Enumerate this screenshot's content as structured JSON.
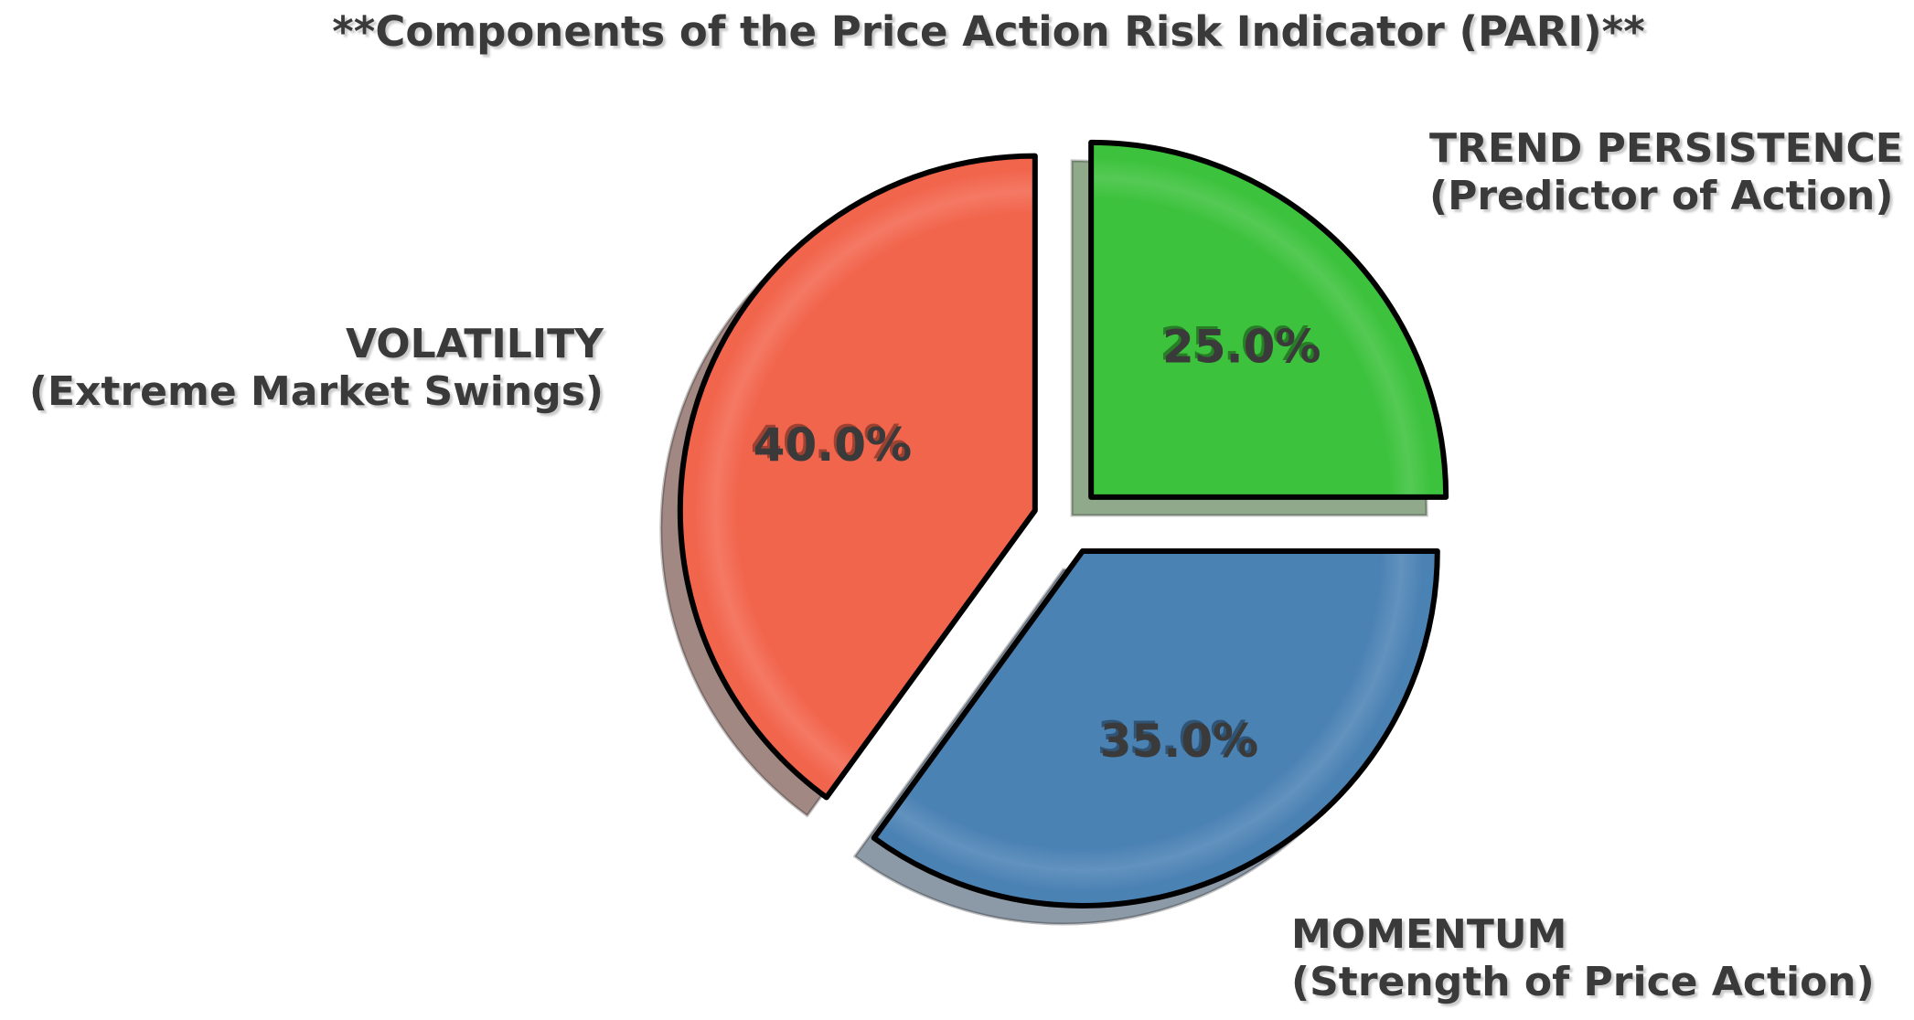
{
  "colors": {
    "background": "#FFFFFF",
    "text": "#3A3A3A",
    "edge": "#000000"
  },
  "chart_data": {
    "type": "pie",
    "title": "**Components of the Price Action Risk Indicator (PARI)**",
    "start_angle": 90,
    "direction": "counterclockwise",
    "explode": 0.095,
    "shadow": true,
    "legend_position": "none",
    "pct_distance": 0.6,
    "slices": [
      {
        "label": "VOLATILITY",
        "sublabel": "(Extreme Market Swings)",
        "value": 40.0,
        "pct_label": "40.0%",
        "color": "#F2654D",
        "shadow_color": "#A18883"
      },
      {
        "label": "MOMENTUM",
        "sublabel": "(Strength of Price Action)",
        "value": 35.0,
        "pct_label": "35.0%",
        "color": "#4B82B4",
        "shadow_color": "#8C99A6"
      },
      {
        "label": "TREND PERSISTENCE",
        "sublabel": "(Predictor of Action)",
        "value": 25.0,
        "pct_label": "25.0%",
        "color": "#3CC23C",
        "shadow_color": "#8FA98A"
      }
    ]
  }
}
